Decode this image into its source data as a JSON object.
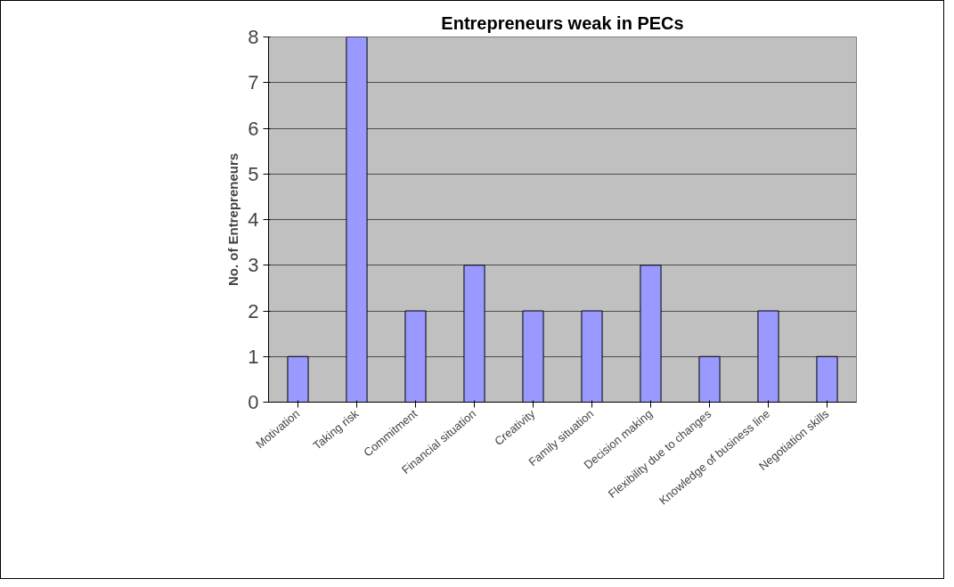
{
  "chart_data": {
    "type": "bar",
    "title": "Entrepreneurs weak in PECs",
    "ylabel": "No. of Entrepreneurs",
    "categories": [
      "Motivation",
      "Taking risk",
      "Commitment",
      "Financial situation",
      "Creativity",
      "Family situation",
      "Decision making",
      "Flexibility due to changes",
      "Knowledge of business line",
      "Negotiation skills"
    ],
    "values": [
      1,
      8,
      2,
      3,
      2,
      2,
      3,
      1,
      2,
      1
    ],
    "color": "#9999ff",
    "ylim": [
      0,
      8
    ],
    "yticks": [
      0,
      1,
      2,
      3,
      4,
      5,
      6,
      7,
      8
    ],
    "grid": "y"
  }
}
